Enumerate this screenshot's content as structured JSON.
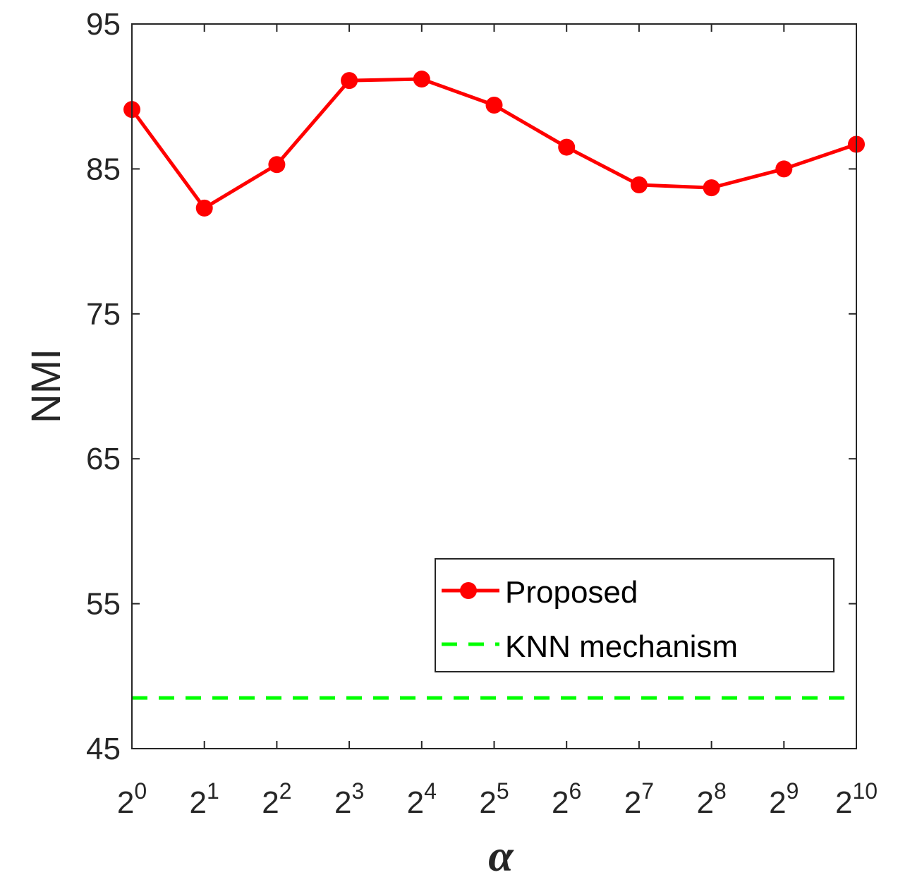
{
  "chart_data": {
    "type": "line",
    "title": "",
    "xlabel": "α",
    "ylabel": "NMI",
    "categories": [
      "2^0",
      "2^1",
      "2^2",
      "2^3",
      "2^4",
      "2^5",
      "2^6",
      "2^7",
      "2^8",
      "2^9",
      "2^10"
    ],
    "x_tick_labels": [
      {
        "base": "2",
        "exp": "0"
      },
      {
        "base": "2",
        "exp": "1"
      },
      {
        "base": "2",
        "exp": "2"
      },
      {
        "base": "2",
        "exp": "3"
      },
      {
        "base": "2",
        "exp": "4"
      },
      {
        "base": "2",
        "exp": "5"
      },
      {
        "base": "2",
        "exp": "6"
      },
      {
        "base": "2",
        "exp": "7"
      },
      {
        "base": "2",
        "exp": "8"
      },
      {
        "base": "2",
        "exp": "9"
      },
      {
        "base": "2",
        "exp": "10"
      }
    ],
    "ylim": [
      45,
      95
    ],
    "yticks": [
      45,
      55,
      65,
      75,
      85,
      95
    ],
    "grid": false,
    "legend_position": "bottom-right",
    "series": [
      {
        "name": "Proposed",
        "color": "#ff0000",
        "style": "solid-line-with-circle-markers",
        "values": [
          89.1,
          82.3,
          85.3,
          91.1,
          91.2,
          89.4,
          86.5,
          83.9,
          83.7,
          85.0,
          86.7
        ]
      },
      {
        "name": "KNN mechanism",
        "color": "#00ff00",
        "style": "dashed-line",
        "values": [
          48.5,
          48.5,
          48.5,
          48.5,
          48.5,
          48.5,
          48.5,
          48.5,
          48.5,
          48.5,
          48.5
        ]
      }
    ]
  }
}
